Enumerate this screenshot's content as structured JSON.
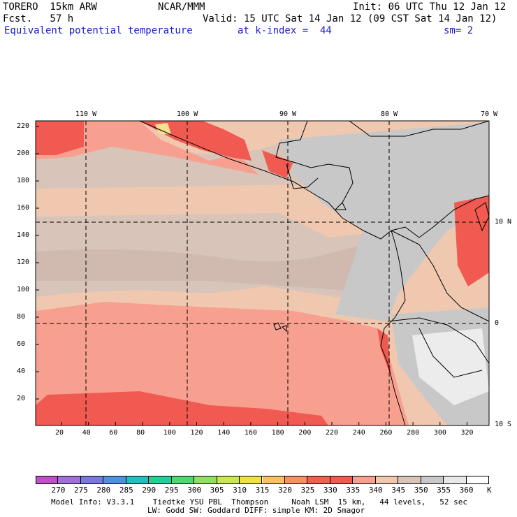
{
  "header": {
    "model": "TORERO  15km ARW",
    "center": "NCAR/MMM",
    "init": "Init: 06 UTC Thu 12 Jan 12",
    "fcst": "Fcst.   57 h",
    "valid": "Valid: 15 UTC Sat 14 Jan 12 (09 CST Sat 14 Jan 12)",
    "field": "Equivalent potential temperature",
    "level": "at k-index =  44",
    "smooth": "sm= 2"
  },
  "axes": {
    "lon_labels": [
      "110 W",
      "100 W",
      "90 W",
      "80 W",
      "70 W"
    ],
    "lat_labels": [
      "10 N",
      "0",
      "10 S"
    ],
    "y_ticks": [
      "220",
      "200",
      "180",
      "160",
      "140",
      "120",
      "100",
      "80",
      "60",
      "40",
      "20"
    ],
    "x_ticks": [
      "20",
      "40",
      "60",
      "80",
      "100",
      "120",
      "140",
      "160",
      "180",
      "200",
      "220",
      "240",
      "260",
      "280",
      "300",
      "320"
    ]
  },
  "colorbar": {
    "labels": [
      "270",
      "275",
      "280",
      "285",
      "290",
      "295",
      "300",
      "305",
      "310",
      "315",
      "320",
      "325",
      "330",
      "335",
      "340",
      "345",
      "350",
      "355",
      "360"
    ],
    "unit": "K",
    "colors": [
      "#c050c8",
      "#a070d8",
      "#7878e0",
      "#5090e0",
      "#20c0c0",
      "#20d098",
      "#50d870",
      "#90e060",
      "#c8e850",
      "#f0e040",
      "#f8c060",
      "#f89060",
      "#f06050",
      "#f05a50",
      "#f8a090",
      "#f0c8b0",
      "#d8c4b8",
      "#c8c8c8",
      "#e8e8e8",
      "#ffffff"
    ]
  },
  "footer": {
    "line1": "Model Info: V3.3.1    Tiedtke YSU PBL  Thompson     Noah LSM  15 km,   44 levels,   52 sec",
    "line2": "LW: Godd SW: Goddard DIFF: simple KM: 2D Smagor"
  },
  "palette": {
    "ocean_warm": "#f8a090",
    "band_mid": "#f0c8b0",
    "band_cool": "#d8c4b8",
    "land_cool": "#c8c8c8",
    "hot": "#f05a50",
    "hottest": "#f8e090",
    "andes_light": "#f0f0f0"
  }
}
